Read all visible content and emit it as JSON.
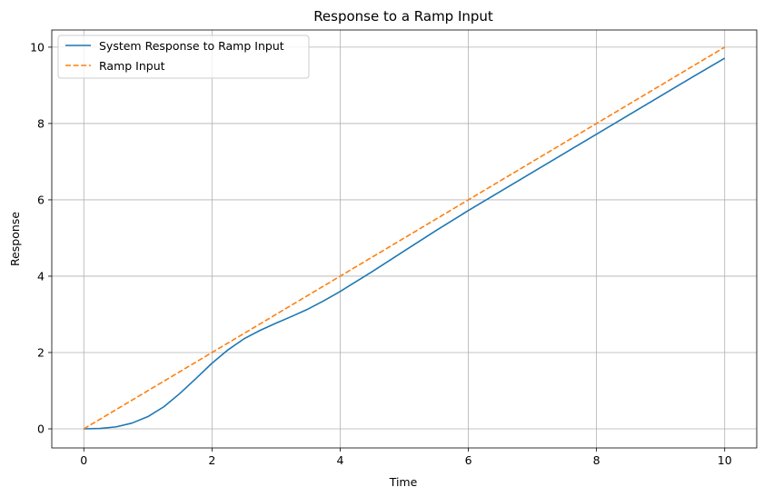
{
  "chart_data": {
    "type": "line",
    "title": "Response to a Ramp Input",
    "xlabel": "Time",
    "ylabel": "Response",
    "xlim": [
      -0.5,
      10.5
    ],
    "ylim": [
      -0.5,
      10.45
    ],
    "xticks": [
      0,
      2,
      4,
      6,
      8,
      10
    ],
    "yticks": [
      0,
      2,
      4,
      6,
      8,
      10
    ],
    "grid": true,
    "legend_position": "top-left",
    "series": [
      {
        "name": "System Response to Ramp Input",
        "color": "#1f77b4",
        "style": "solid",
        "x": [
          0,
          0.25,
          0.5,
          0.75,
          1,
          1.25,
          1.5,
          1.75,
          2,
          2.25,
          2.5,
          2.75,
          3,
          3.25,
          3.5,
          3.75,
          4,
          4.5,
          5,
          5.5,
          6,
          6.5,
          7,
          7.5,
          8,
          8.5,
          9,
          9.5,
          10
        ],
        "y": [
          0,
          0.01,
          0.05,
          0.15,
          0.32,
          0.58,
          0.93,
          1.32,
          1.72,
          2.07,
          2.36,
          2.58,
          2.77,
          2.95,
          3.14,
          3.36,
          3.6,
          4.12,
          4.66,
          5.2,
          5.72,
          6.22,
          6.72,
          7.22,
          7.72,
          8.22,
          8.72,
          9.22,
          9.71
        ]
      },
      {
        "name": "Ramp Input",
        "color": "#ff7f0e",
        "style": "dashed",
        "x": [
          0,
          10
        ],
        "y": [
          0,
          10
        ]
      }
    ]
  }
}
